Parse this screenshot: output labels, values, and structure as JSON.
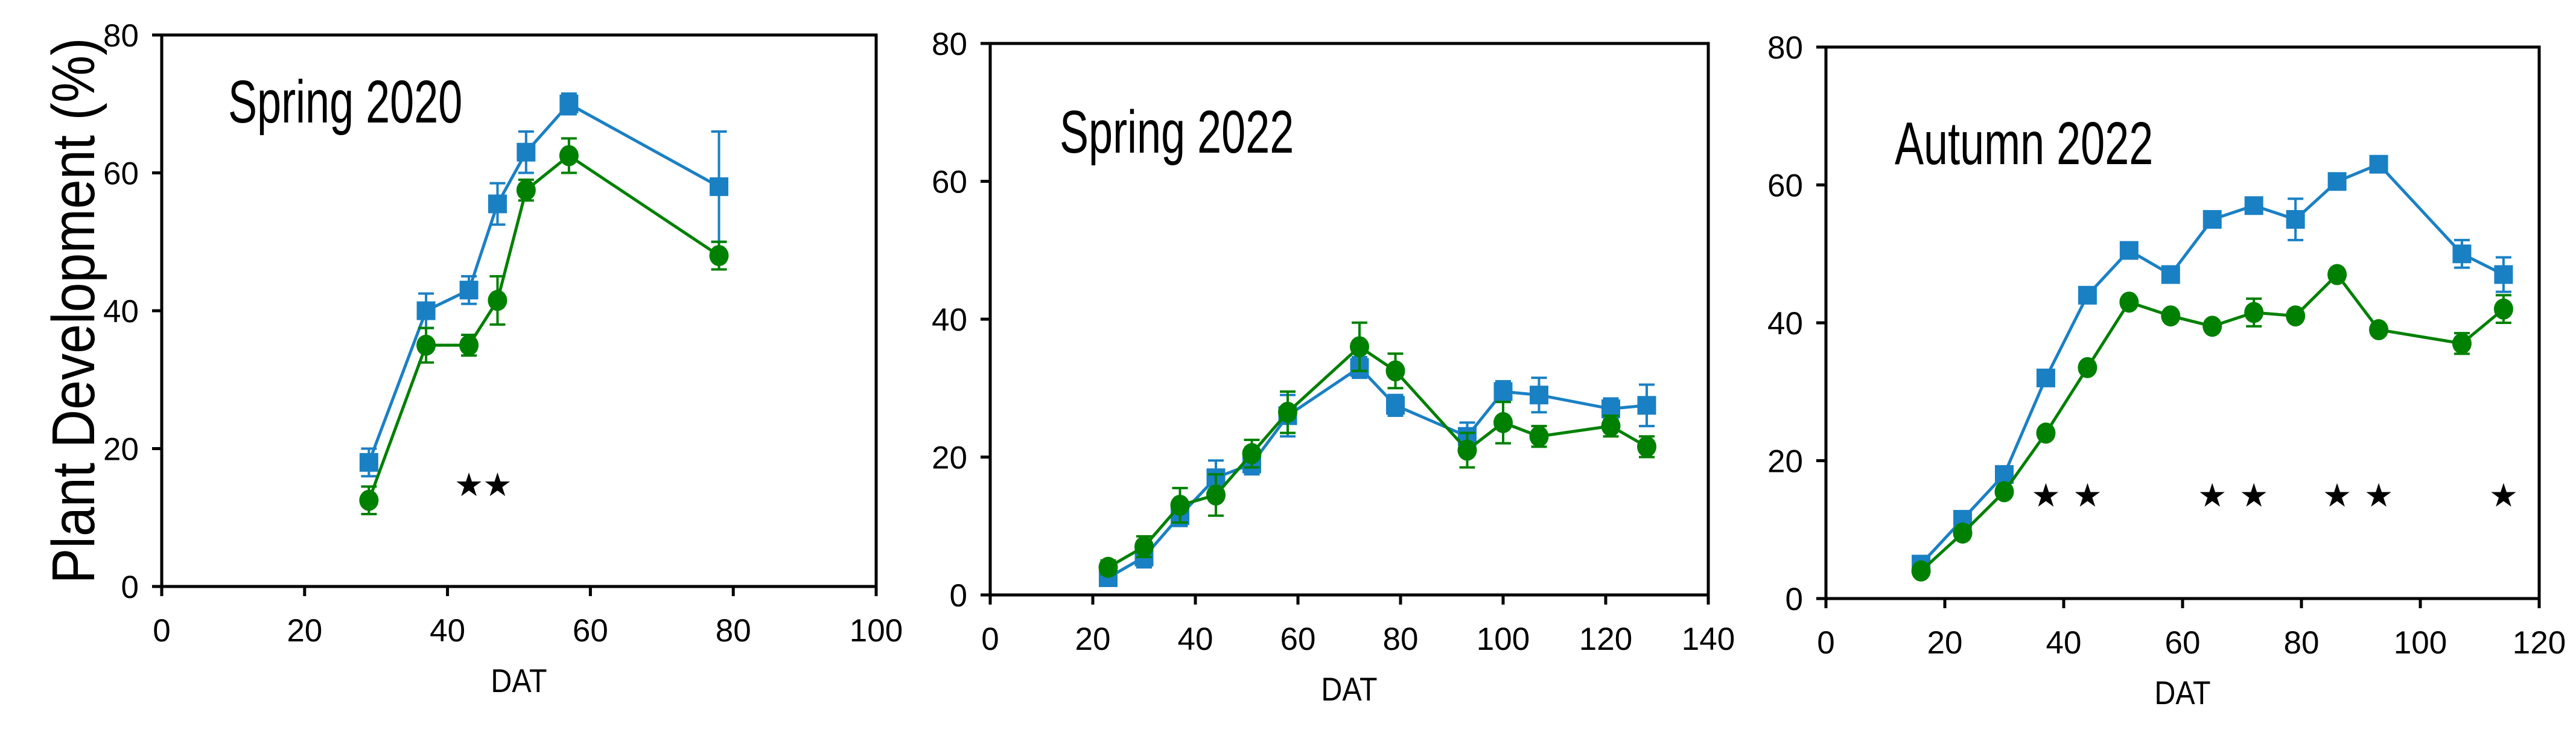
{
  "figure": {
    "ylabel": "Plant Development (%)",
    "background_color": "#ffffff",
    "axis_color": "#000000",
    "star_symbol": "★",
    "series_colors": {
      "squares": "#1a80c4",
      "circles": "#008000"
    }
  },
  "chart_data": [
    {
      "type": "line",
      "title": "Spring 2020",
      "xlabel": "DAT",
      "ylabel": "Plant Development (%)",
      "xlim": [
        0,
        100
      ],
      "ylim": [
        0,
        80
      ],
      "xticks": [
        0,
        20,
        40,
        60,
        80,
        100
      ],
      "yticks": [
        0,
        20,
        40,
        60,
        80
      ],
      "grid": false,
      "legend": "none",
      "x": [
        29,
        37,
        43,
        47,
        51,
        57,
        78
      ],
      "series": [
        {
          "name": "blue-squares",
          "marker": "square",
          "color": "#1a80c4",
          "y": [
            18,
            40,
            43,
            55.5,
            63,
            70,
            58
          ],
          "yerr": [
            2,
            2.5,
            2,
            3,
            3,
            1.5,
            8
          ]
        },
        {
          "name": "green-circles",
          "marker": "circle",
          "color": "#008000",
          "y": [
            12.5,
            35,
            35,
            41.5,
            57.5,
            62.5,
            48
          ],
          "yerr": [
            2,
            2.5,
            1.5,
            3.5,
            1.5,
            2.5,
            2
          ]
        }
      ],
      "significance_stars": {
        "x": [
          43,
          47
        ],
        "y": 14.8
      }
    },
    {
      "type": "line",
      "title": "Spring 2022",
      "xlabel": "DAT",
      "ylabel": "Plant Development (%)",
      "xlim": [
        0,
        140
      ],
      "ylim": [
        0,
        80
      ],
      "xticks": [
        0,
        20,
        40,
        60,
        80,
        100,
        120,
        140
      ],
      "yticks": [
        0,
        20,
        40,
        60,
        80
      ],
      "grid": false,
      "legend": "none",
      "x": [
        23,
        30,
        37,
        44,
        51,
        58,
        72,
        79,
        93,
        100,
        107,
        121,
        128
      ],
      "series": [
        {
          "name": "blue-squares",
          "marker": "square",
          "color": "#1a80c4",
          "y": [
            2.5,
            5.5,
            11.5,
            17,
            19,
            26,
            33,
            27.5,
            23,
            29.5,
            29,
            27,
            27.5
          ],
          "yerr": [
            1,
            1.5,
            1.5,
            2.5,
            1.5,
            3,
            1.5,
            1.5,
            2,
            1.5,
            2.5,
            1.5,
            3
          ]
        },
        {
          "name": "green-circles",
          "marker": "circle",
          "color": "#008000",
          "y": [
            4,
            7,
            13,
            14.5,
            20.5,
            26.5,
            36,
            32.5,
            21,
            25,
            23,
            24.5,
            21.5
          ],
          "yerr": [
            1,
            1.5,
            2.5,
            3,
            2,
            3,
            3.5,
            2.5,
            2.5,
            3,
            1.5,
            1.5,
            1.5
          ]
        }
      ],
      "significance_stars": {
        "x": [],
        "y": 14.8
      }
    },
    {
      "type": "line",
      "title": "Autumn 2022",
      "xlabel": "DAT",
      "ylabel": "Plant Development (%)",
      "xlim": [
        0,
        120
      ],
      "ylim": [
        0,
        80
      ],
      "xticks": [
        0,
        20,
        40,
        60,
        80,
        100,
        120
      ],
      "yticks": [
        0,
        20,
        40,
        60,
        80
      ],
      "grid": false,
      "legend": "none",
      "x": [
        16,
        23,
        30,
        37,
        44,
        51,
        58,
        65,
        72,
        79,
        86,
        93,
        107,
        114
      ],
      "series": [
        {
          "name": "blue-squares",
          "marker": "square",
          "color": "#1a80c4",
          "y": [
            5,
            11.5,
            18,
            32,
            44,
            50.5,
            47,
            55,
            57,
            55,
            60.5,
            63,
            50,
            47
          ],
          "yerr": [
            0,
            0,
            0,
            0,
            0,
            0,
            0,
            0,
            0,
            3,
            0,
            0,
            2,
            2.5
          ]
        },
        {
          "name": "green-circles",
          "marker": "circle",
          "color": "#008000",
          "y": [
            4,
            9.5,
            15.5,
            24,
            33.5,
            43,
            41,
            39.5,
            41.5,
            41,
            47,
            39,
            37,
            42
          ],
          "yerr": [
            0,
            0,
            0,
            0,
            0,
            0,
            0,
            0,
            2,
            0,
            0,
            0,
            1.5,
            2
          ]
        }
      ],
      "significance_stars": {
        "x": [
          37,
          44,
          65,
          72,
          86,
          93,
          114
        ],
        "y": 15
      }
    }
  ]
}
